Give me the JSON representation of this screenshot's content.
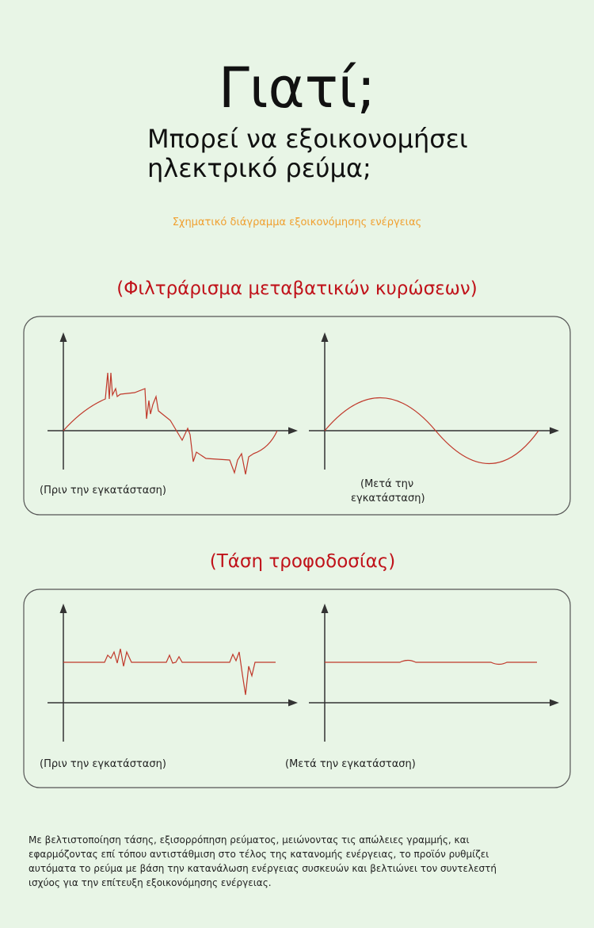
{
  "header": {
    "title": "Γιατί;",
    "subtitle": [
      "Μπορεί να εξοικονομήσει",
      "ηλεκτρικό ρεύμα;"
    ],
    "caption": "Σχηματικό διάγραμμα εξοικονόμησης ενέργειας"
  },
  "sections": [
    {
      "heading": "(Φιλτράρισμα μεταβατικών κυρώσεων)",
      "before": [
        "(Πριν την εγκατάσταση)"
      ],
      "after": [
        "(Μετά την",
        "εγκατάσταση)"
      ]
    },
    {
      "heading": "(Τάση τροφοδοσίας)",
      "before": [
        "(Πριν την εγκατάσταση)"
      ],
      "after": [
        "(Μετά την εγκατάσταση)"
      ]
    }
  ],
  "footer": {
    "lines": [
      "Με βελτιστοποίηση τάσης, εξισορρόπηση ρεύματος, μειώνοντας τις απώλειες γραμμής, και",
      "εφαρμόζοντας επί τόπου αντιστάθμιση στο τέλος της κατανομής ενέργειας, το προϊόν ρυθμίζει",
      "αυτόματα το ρεύμα με βάση την κατανάλωση ενέργειας συσκευών και βελτιώνει τον συντελεστή",
      "ισχύος για την επίτευξη εξοικονόμησης ενέργειας."
    ]
  }
}
